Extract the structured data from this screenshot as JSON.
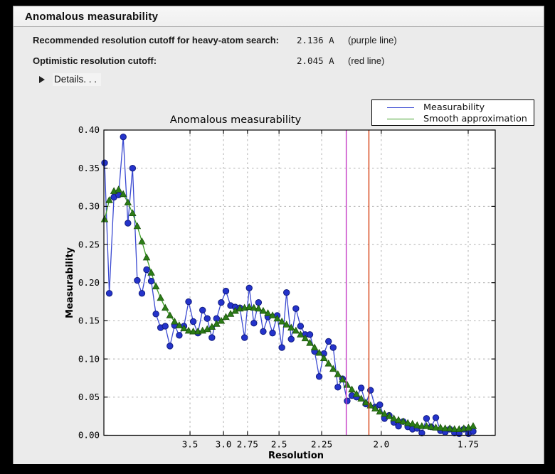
{
  "window": {
    "title": "Anomalous measurability"
  },
  "summary": {
    "rows": [
      {
        "label": "Recommended resolution cutoff for heavy-atom search:",
        "value": "2.136 A",
        "note": "(purple line)"
      },
      {
        "label": "Optimistic resolution cutoff:",
        "value": "2.045 A",
        "note": "(red line)"
      }
    ],
    "details_label": "Details. . ."
  },
  "chart_data": {
    "type": "line",
    "title": "Anomalous measurability",
    "xlabel": "Resolution",
    "ylabel": "Measurability",
    "x_transform": "1_over_d_squared",
    "x_tick_resolutions": [
      3.5,
      3.0,
      2.75,
      2.5,
      2.25,
      2.0,
      1.75
    ],
    "x_tick_labels": [
      "3.5",
      "3.0",
      "2.75",
      "2.5",
      "2.25",
      "2.0",
      "1.75"
    ],
    "x_s_range": [
      0.00582,
      0.35033
    ],
    "ylim": [
      0,
      0.4
    ],
    "ytick_step": 0.05,
    "grid": true,
    "legend_position": "upper-right",
    "s_start": 0.006451,
    "s_step": 0.0041069,
    "colors": {
      "grid": "#b0b0b0",
      "frame": "#000000",
      "plot_bg": "#ffffff",
      "figure_bg": "#ebebeb"
    },
    "series": [
      {
        "name": "Measurability",
        "color": "#3a49d1",
        "marker": "circle",
        "marker_fill": "#2433cb",
        "marker_edge": "#111c7e",
        "values": [
          0.357,
          0.186,
          0.312,
          0.315,
          0.391,
          0.278,
          0.35,
          0.203,
          0.186,
          0.217,
          0.202,
          0.159,
          0.141,
          0.143,
          0.117,
          0.144,
          0.131,
          0.143,
          0.175,
          0.149,
          0.134,
          0.164,
          0.153,
          0.128,
          0.153,
          0.174,
          0.189,
          0.17,
          0.168,
          0.167,
          0.128,
          0.193,
          0.147,
          0.174,
          0.136,
          0.155,
          0.134,
          0.157,
          0.115,
          0.187,
          0.126,
          0.166,
          0.143,
          0.132,
          0.132,
          0.11,
          0.077,
          0.107,
          0.123,
          0.115,
          0.063,
          0.074,
          0.045,
          0.052,
          0.05,
          0.062,
          0.041,
          0.059,
          0.037,
          0.04,
          0.022,
          0.026,
          0.017,
          0.012,
          0.018,
          0.011,
          0.008,
          0.009,
          0.003,
          0.022,
          0.011,
          0.023,
          0.006,
          0.004,
          0.008,
          0.003,
          0.002,
          0.008,
          0.002,
          0.005
        ]
      },
      {
        "name": "Smooth approximation",
        "color": "#3f9e28",
        "marker": "triangle",
        "marker_fill": "#2c7d16",
        "marker_edge": "#1b520c",
        "values": [
          0.283,
          0.308,
          0.32,
          0.322,
          0.316,
          0.305,
          0.291,
          0.274,
          0.254,
          0.233,
          0.213,
          0.195,
          0.18,
          0.167,
          0.157,
          0.149,
          0.144,
          0.14,
          0.137,
          0.136,
          0.136,
          0.137,
          0.139,
          0.142,
          0.146,
          0.15,
          0.155,
          0.159,
          0.163,
          0.166,
          0.167,
          0.168,
          0.167,
          0.166,
          0.163,
          0.16,
          0.157,
          0.153,
          0.149,
          0.145,
          0.141,
          0.137,
          0.132,
          0.127,
          0.121,
          0.115,
          0.108,
          0.101,
          0.094,
          0.087,
          0.08,
          0.073,
          0.066,
          0.06,
          0.054,
          0.048,
          0.043,
          0.039,
          0.035,
          0.031,
          0.028,
          0.025,
          0.022,
          0.02,
          0.018,
          0.016,
          0.015,
          0.013,
          0.012,
          0.012,
          0.011,
          0.01,
          0.01,
          0.009,
          0.009,
          0.008,
          0.008,
          0.009,
          0.01,
          0.012
        ]
      }
    ],
    "vlines": [
      {
        "name": "purple line",
        "resolution": 2.136,
        "color": "#c438c4"
      },
      {
        "name": "red line",
        "resolution": 2.045,
        "color": "#d63d0f"
      }
    ]
  }
}
